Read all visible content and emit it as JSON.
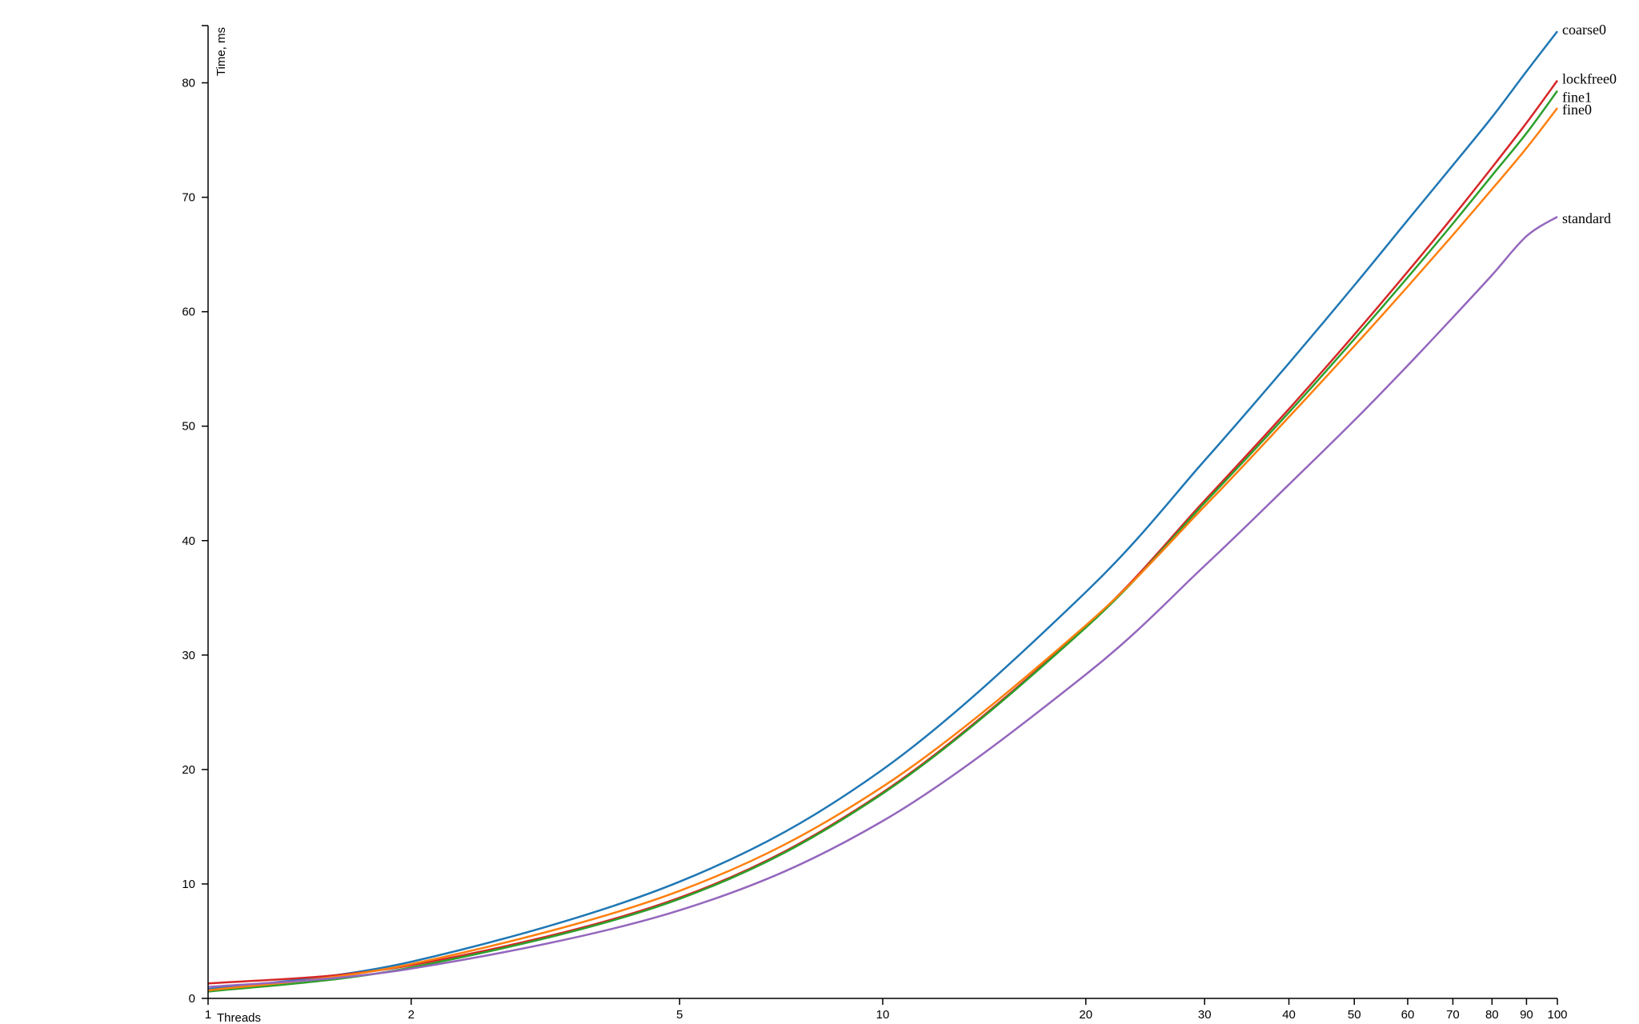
{
  "chart_data": {
    "type": "line",
    "xscale": "log",
    "xlim": [
      1,
      100
    ],
    "ylim": [
      0,
      85
    ],
    "xlabel": "Threads",
    "ylabel": "Time, ms",
    "x_ticks": [
      {
        "value": 1,
        "label": "1"
      },
      {
        "value": 2,
        "label": "2"
      },
      {
        "value": 5,
        "label": "5"
      },
      {
        "value": 10,
        "label": "10"
      },
      {
        "value": 20,
        "label": "20"
      },
      {
        "value": 30,
        "label": "30"
      },
      {
        "value": 40,
        "label": "40"
      },
      {
        "value": 50,
        "label": "50"
      },
      {
        "value": 60,
        "label": "60"
      },
      {
        "value": 70,
        "label": "70"
      },
      {
        "value": 80,
        "label": "80"
      },
      {
        "value": 90,
        "label": "90"
      },
      {
        "value": 100,
        "label": "100"
      }
    ],
    "y_ticks": [
      {
        "value": 0,
        "label": "0"
      },
      {
        "value": 10,
        "label": "10"
      },
      {
        "value": 20,
        "label": "20"
      },
      {
        "value": 30,
        "label": "30"
      },
      {
        "value": 40,
        "label": "40"
      },
      {
        "value": 50,
        "label": "50"
      },
      {
        "value": 60,
        "label": "60"
      },
      {
        "value": 70,
        "label": "70"
      },
      {
        "value": 80,
        "label": "80"
      }
    ],
    "x": [
      1,
      2,
      5,
      10,
      20,
      30,
      40,
      50,
      60,
      70,
      80,
      90,
      100
    ],
    "series": [
      {
        "name": "coarse0",
        "color": "#1f77b4",
        "values": [
          0.8,
          3.2,
          10.2,
          20.0,
          35.5,
          47.0,
          55.5,
          62.3,
          68.0,
          72.8,
          77.0,
          81.0,
          84.5
        ]
      },
      {
        "name": "lockfree0",
        "color": "#d62728",
        "values": [
          1.3,
          2.9,
          8.8,
          18.0,
          32.5,
          43.5,
          51.5,
          58.0,
          63.5,
          68.3,
          72.6,
          76.5,
          80.2
        ]
      },
      {
        "name": "fine1",
        "color": "#2ca02c",
        "values": [
          0.6,
          2.7,
          8.7,
          17.9,
          32.4,
          43.3,
          51.2,
          57.6,
          63.0,
          67.7,
          71.9,
          75.6,
          79.3
        ]
      },
      {
        "name": "fine0",
        "color": "#ff7f0e",
        "values": [
          0.7,
          3.0,
          9.4,
          18.5,
          32.6,
          43.0,
          50.8,
          57.0,
          62.2,
          66.7,
          70.7,
          74.3,
          77.8
        ]
      },
      {
        "name": "standard",
        "color": "#9467bd",
        "values": [
          1.0,
          2.6,
          7.7,
          15.5,
          28.3,
          37.8,
          44.9,
          50.5,
          55.3,
          59.5,
          63.2,
          66.6,
          68.3
        ]
      }
    ]
  }
}
